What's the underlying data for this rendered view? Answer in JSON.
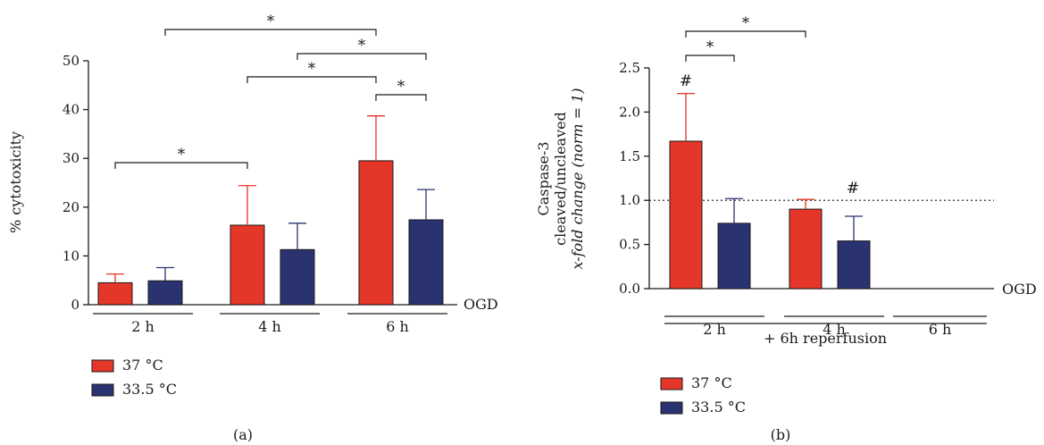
{
  "colors": {
    "warm": "#e5362a",
    "cool": "#2b3270",
    "axis": "#1a1a1a"
  },
  "legend": [
    {
      "label": "37 °C",
      "color": "#e5362a"
    },
    {
      "label": "33.5 °C",
      "color": "#2b3270"
    }
  ],
  "chart_data": [
    {
      "type": "bar",
      "ylabel": "% cytotoxicity",
      "ylim": [
        0,
        50
      ],
      "yticks": [
        "0",
        "10",
        "20",
        "30",
        "40",
        "50"
      ],
      "ytick_values": [
        0,
        10,
        20,
        30,
        40,
        50
      ],
      "categories": [
        "2 h",
        "4 h",
        "6 h"
      ],
      "axis_end_label": "OGD",
      "series": [
        {
          "name": "37 °C",
          "values": [
            4.5,
            16.3,
            29.5
          ],
          "errors": [
            1.8,
            8.1,
            9.2
          ]
        },
        {
          "name": "33.5 °C",
          "values": [
            4.9,
            11.3,
            17.4
          ],
          "errors": [
            2.7,
            5.4,
            6.2
          ]
        }
      ],
      "significance": [
        "*",
        "*",
        "*",
        "*",
        "*"
      ],
      "caption": "(a)"
    },
    {
      "type": "bar",
      "ylabel_lines": [
        "Caspase-3",
        "cleaved/uncleaved",
        "x-fold change (norm = 1)"
      ],
      "ylim": [
        0,
        2.5
      ],
      "yticks": [
        "0.0",
        "0.5",
        "1.0",
        "1.5",
        "2.0",
        "2.5"
      ],
      "ytick_values": [
        0,
        0.5,
        1.0,
        1.5,
        2.0,
        2.5
      ],
      "categories": [
        "2 h",
        "4 h",
        "6 h"
      ],
      "axis_end_label": "OGD",
      "group_label": "+ 6h reperfusion",
      "reference_line": 1.0,
      "series": [
        {
          "name": "37 °C",
          "values": [
            1.67,
            0.9,
            null
          ],
          "errors": [
            0.54,
            0.11,
            null
          ]
        },
        {
          "name": "33.5 °C",
          "values": [
            0.74,
            0.54,
            null
          ],
          "errors": [
            0.28,
            0.28,
            null
          ]
        }
      ],
      "significance": [
        "*",
        "*"
      ],
      "hash_marks": [
        "#",
        "#"
      ],
      "caption": "(b)"
    }
  ]
}
